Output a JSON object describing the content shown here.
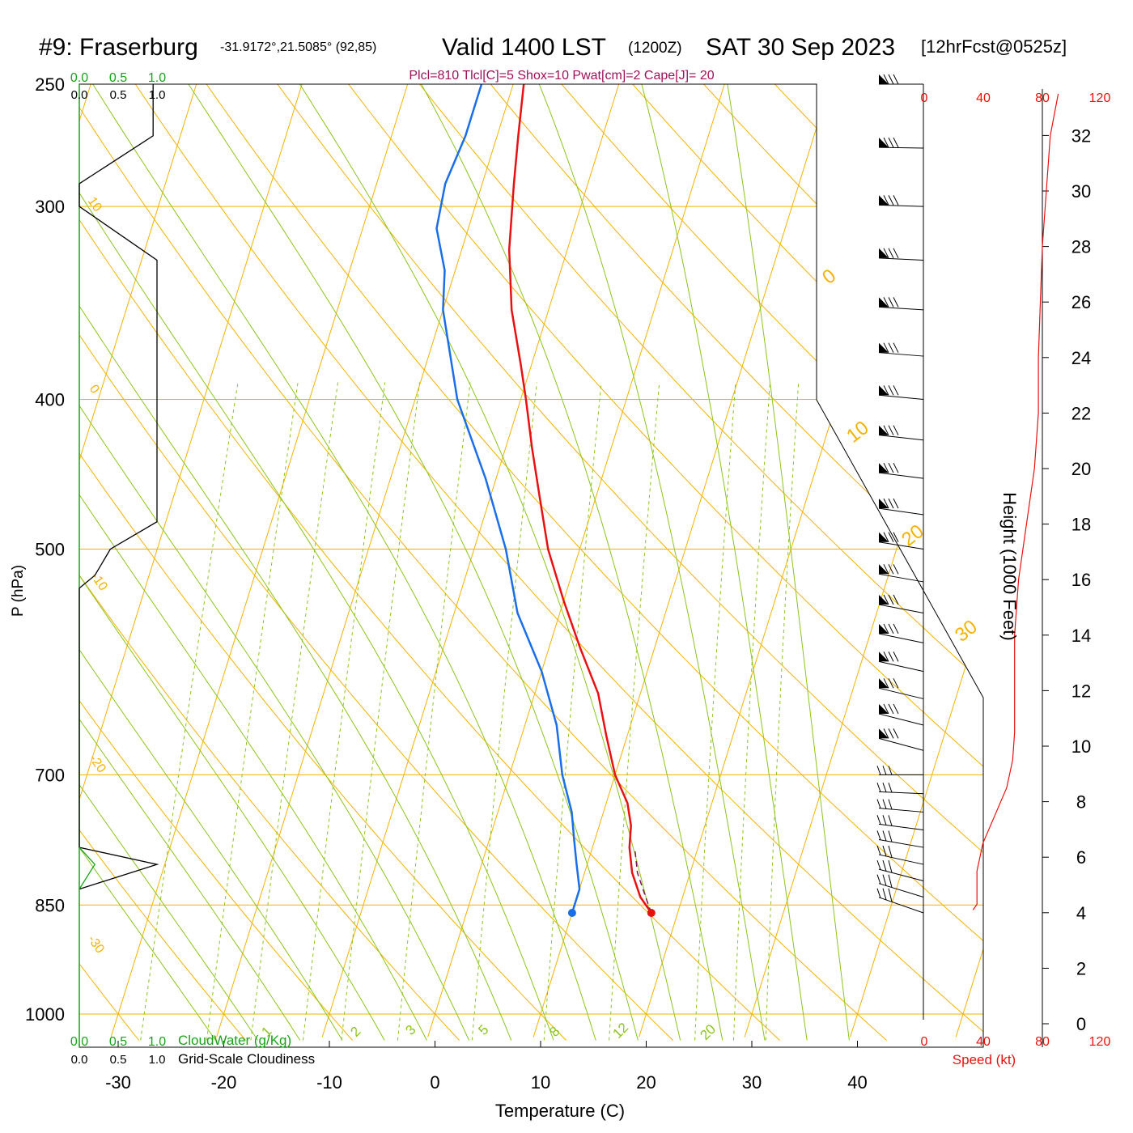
{
  "header": {
    "station": "#9: Fraserburg",
    "coords": "-31.9172°,21.5085° (92,85)",
    "valid": "Valid 1400 LST",
    "zulu": "(1200Z)",
    "date": "SAT 30 Sep 2023",
    "fcst": "[12hrFcst@0525z]",
    "indices": "Plcl=810 Tlcl[C]=5 Shox=10 Pwat[cm]=2 Cape[J]= 20"
  },
  "colors": {
    "temperature": "#e81010",
    "dewpoint": "#1a6ee8",
    "isotherm": "#f2b300",
    "dry_adiabat": "#f2b300",
    "moist_adiabat": "#8cc41c",
    "mixing_ratio": "#8cc41c",
    "cloudwater": "#1aa31a",
    "parcel": "#7a1a5a",
    "speed": "#e81010",
    "indices": "#a0105a"
  },
  "chart_data": [
    {
      "type": "line",
      "name": "skew-t",
      "xlabel": "Temperature (C)",
      "ylabel": "P (hPa)",
      "x_ticks": [
        -30,
        -20,
        -10,
        0,
        10,
        20,
        30,
        40
      ],
      "y_ticks": [
        250,
        300,
        400,
        500,
        700,
        850,
        1000
      ],
      "xlim": [
        -34,
        36
      ],
      "ylim": [
        1030,
        250
      ],
      "y_scale": "log",
      "dry_adiabat_labels": [
        "10",
        "0",
        "-10",
        "-20",
        "-30"
      ],
      "isotherm_labels": [
        "0",
        "10",
        "20",
        "30"
      ],
      "mixing_ratio_labels": [
        "1",
        "2",
        "3",
        "5",
        "8",
        "12",
        "20"
      ],
      "series": [
        {
          "key": "temperature",
          "p": [
            250,
            270,
            290,
            320,
            350,
            380,
            400,
            430,
            460,
            500,
            540,
            580,
            620,
            660,
            700,
            730,
            755,
            780,
            810,
            840,
            860
          ],
          "t": [
            -19,
            -18,
            -17,
            -15.5,
            -13.5,
            -11,
            -9.5,
            -7.5,
            -5.5,
            -3,
            0,
            3,
            6,
            8,
            10,
            12,
            13,
            13.5,
            14.5,
            16,
            17.5
          ]
        },
        {
          "key": "dewpoint",
          "p": [
            250,
            270,
            290,
            310,
            330,
            350,
            400,
            450,
            500,
            550,
            600,
            650,
            700,
            740,
            770,
            800,
            830,
            860
          ],
          "t": [
            -23,
            -23,
            -23.5,
            -23,
            -21,
            -20,
            -16,
            -11,
            -7,
            -4,
            0,
            3,
            5,
            7,
            8,
            9,
            10,
            10
          ]
        }
      ],
      "parcel": {
        "p": [
          860,
          840,
          810,
          780
        ],
        "t": [
          17.5,
          16.5,
          15,
          14
        ]
      },
      "surface_points": {
        "temperature": {
          "p": 860,
          "t": 17.5
        },
        "dewpoint": {
          "p": 860,
          "t": 10
        }
      }
    },
    {
      "type": "line",
      "name": "cloud-panel",
      "top_axis_green": [
        "0.0",
        "0.5",
        "1.0"
      ],
      "top_axis_black": [
        "0.0",
        "0.5",
        "1.0"
      ],
      "bottom_axis_green": [
        "0.0",
        "0.5",
        "1.0"
      ],
      "bottom_axis_black": [
        "0.0",
        "0.5",
        "1.0"
      ],
      "cloudwater_label": "CloudWater (g/Kg)",
      "cloudiness_label": "Grid-Scale Cloudiness",
      "cloudiness": {
        "p": [
          250,
          270,
          290,
          300,
          325,
          480,
          500,
          520,
          530,
          780,
          800,
          830
        ],
        "v": [
          0.95,
          0.95,
          0.0,
          0.0,
          1.0,
          1.0,
          0.4,
          0.2,
          0.0,
          0.0,
          1.0,
          0.0
        ]
      },
      "cloudwater": {
        "p": [
          780,
          800,
          830
        ],
        "v": [
          0.0,
          0.2,
          0.0
        ]
      }
    },
    {
      "type": "line",
      "name": "wind-speed",
      "xlabel": "Speed (kt)",
      "x_ticks": [
        "0",
        "40",
        "80",
        "120"
      ],
      "xlim": [
        0,
        120
      ],
      "height_label": "Height (1000 Feet)",
      "height_ticks": [
        "0",
        "2",
        "4",
        "6",
        "8",
        "10",
        "12",
        "14",
        "16",
        "18",
        "20",
        "22",
        "24",
        "26",
        "28",
        "30",
        "32"
      ],
      "height_kft": [
        4.1,
        4.3,
        5.5,
        6.5,
        7.5,
        8.5,
        9.5,
        10.5,
        12,
        14,
        16,
        18,
        20,
        22,
        24,
        26,
        28,
        30,
        32,
        33.5
      ],
      "speed_kt": [
        25,
        27,
        27,
        30,
        36,
        42,
        45,
        46,
        46,
        46,
        48,
        52,
        56,
        58,
        58,
        59,
        60,
        62,
        64,
        68
      ]
    }
  ]
}
